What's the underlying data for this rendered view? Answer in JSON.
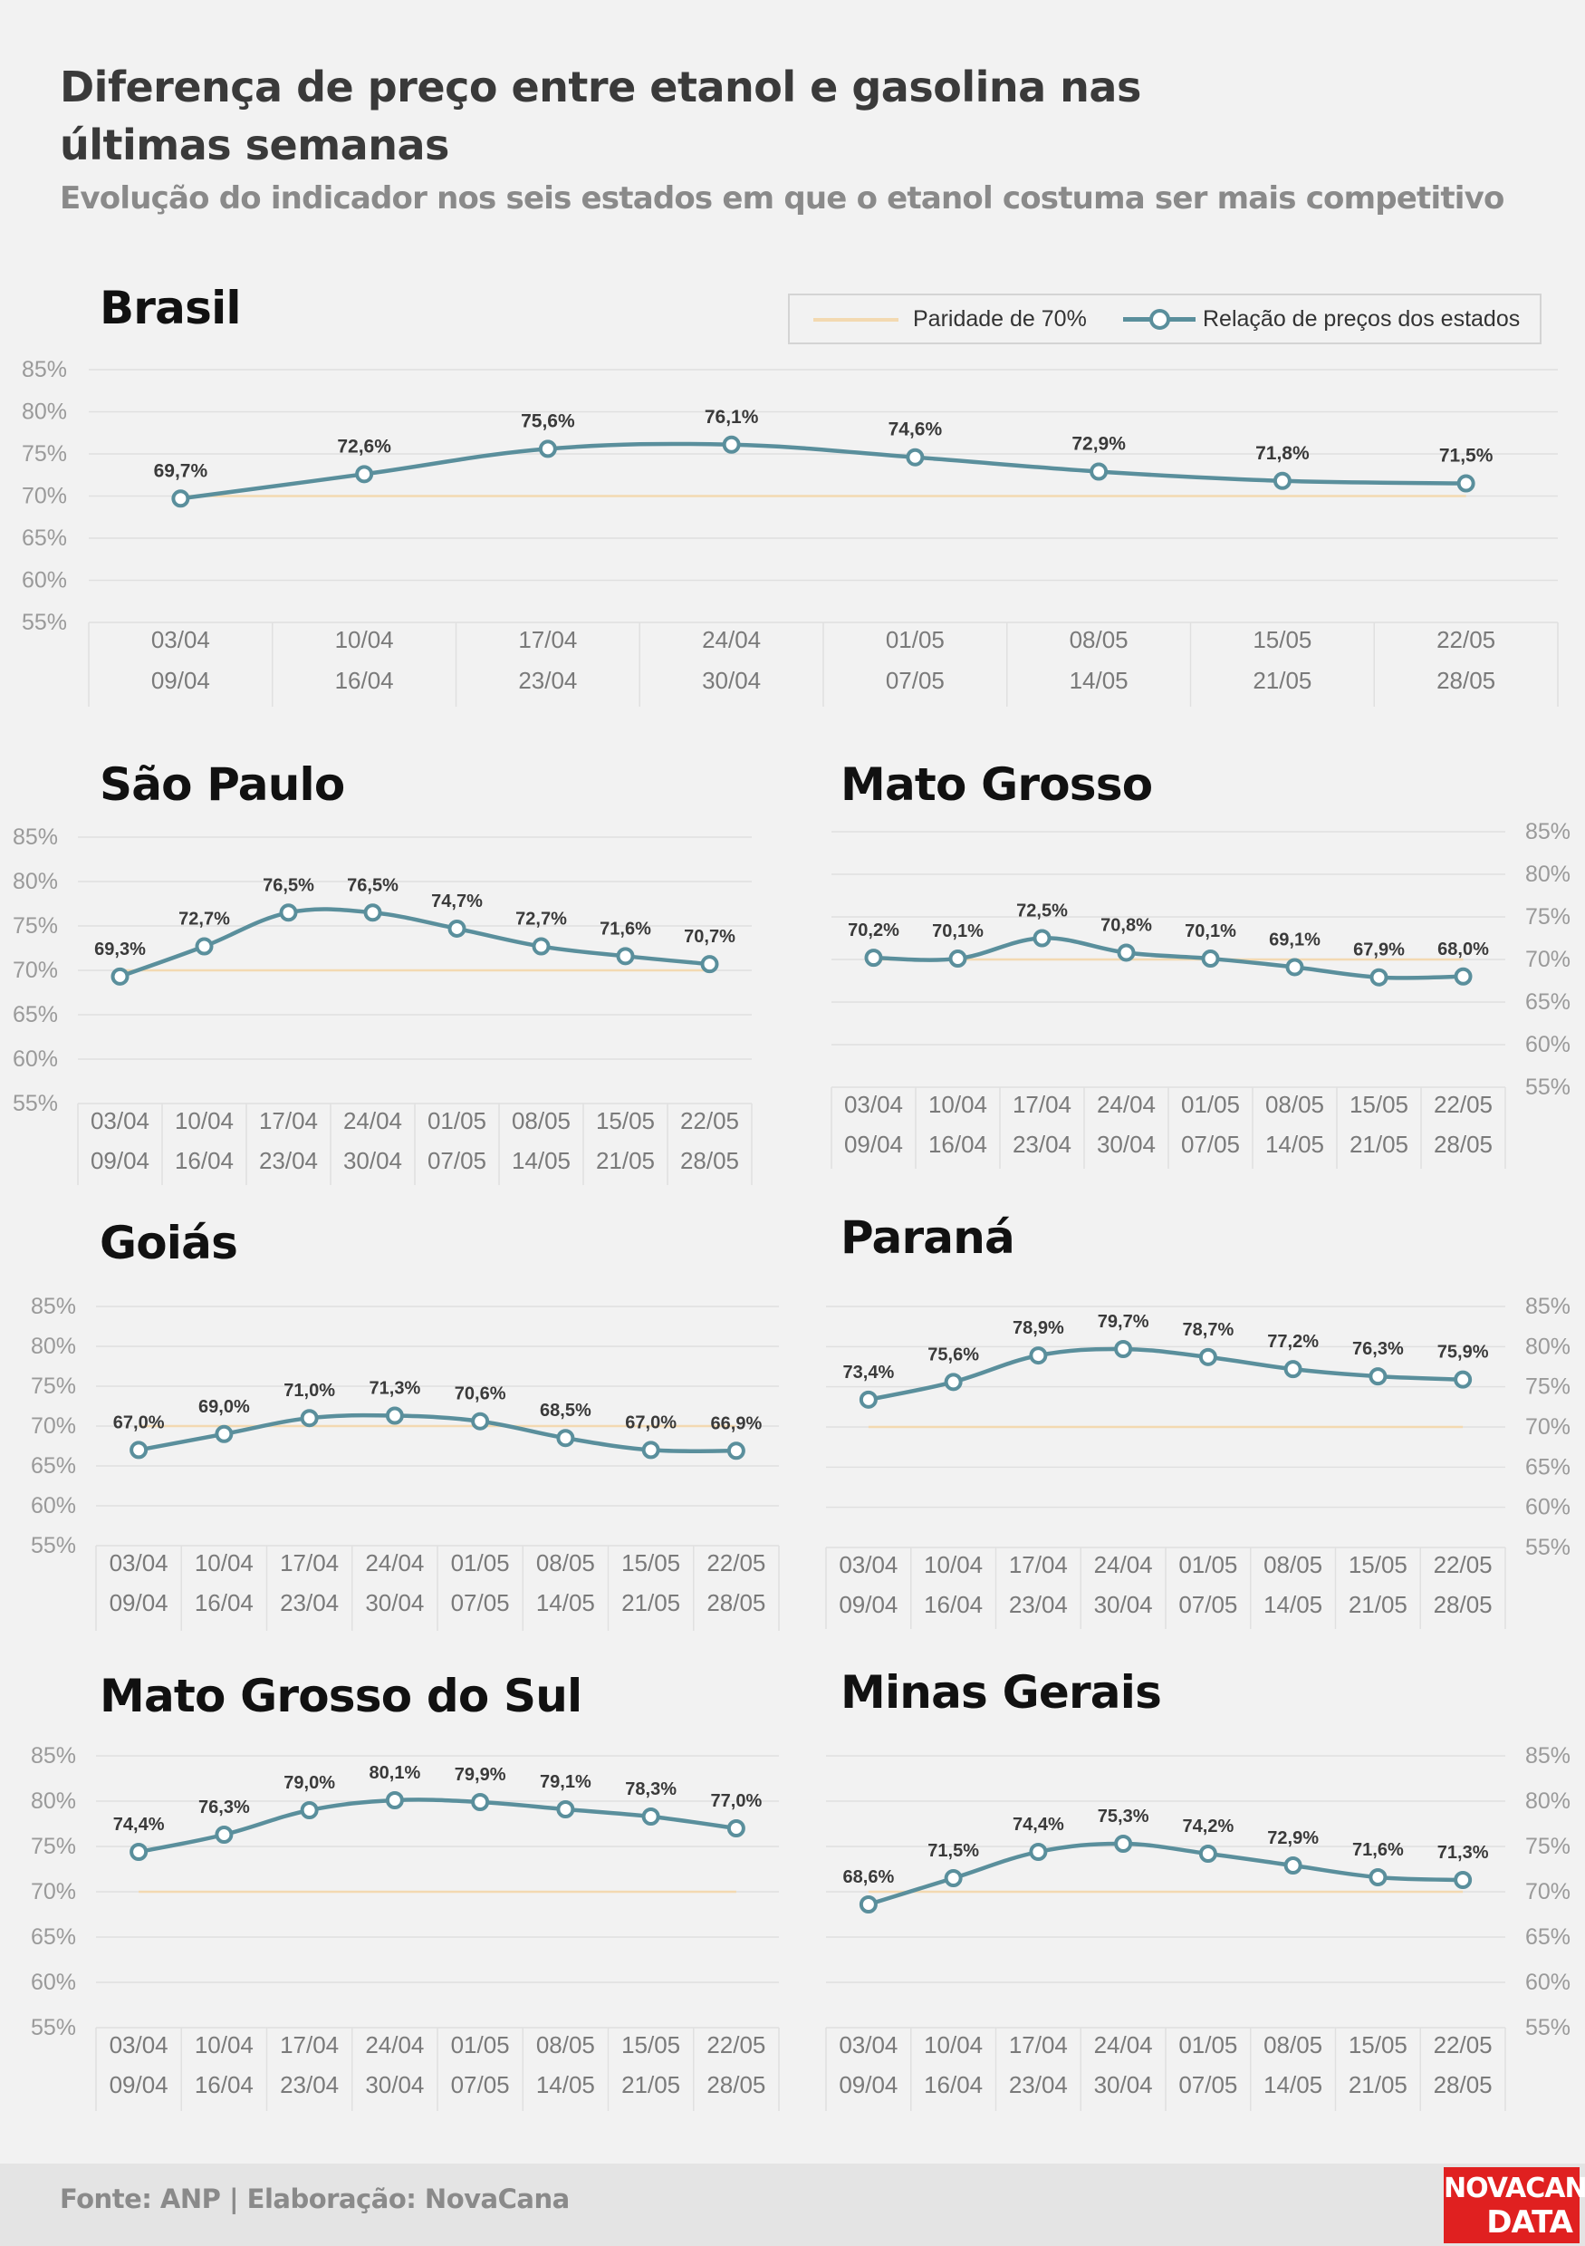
{
  "header": {
    "title_line1": "Diferença de preço entre etanol e gasolina nas",
    "title_line2": "últimas semanas",
    "subtitle": "Evolução do indicador nos seis estados em que o etanol costuma ser mais competitivo"
  },
  "legend": {
    "parity_label": "Paridade de 70%",
    "series_label": "Relação de preços dos estados"
  },
  "footer": {
    "source": "Fonte: ANP | Elaboração: NovaCana",
    "logo_line1": "NOVACANA",
    "logo_line2": "DATA"
  },
  "colors": {
    "series": "#5a8f9c",
    "parity": "#f3d9b1",
    "grid": "#e0e0e0",
    "axis_text": "#9a9a9a",
    "logo_bg": "#e02020"
  },
  "chart_data": [
    {
      "type": "line",
      "title": "Brasil",
      "categories": [
        [
          "03/04",
          "09/04"
        ],
        [
          "10/04",
          "16/04"
        ],
        [
          "17/04",
          "23/04"
        ],
        [
          "24/04",
          "30/04"
        ],
        [
          "01/05",
          "07/05"
        ],
        [
          "08/05",
          "14/05"
        ],
        [
          "15/05",
          "21/05"
        ],
        [
          "22/05",
          "28/05"
        ]
      ],
      "values": [
        69.7,
        72.6,
        75.6,
        76.1,
        74.6,
        72.9,
        71.8,
        71.5
      ],
      "labels": [
        "69,7%",
        "72,6%",
        "75,6%",
        "76,1%",
        "74,6%",
        "72,9%",
        "71,8%",
        "71,5%"
      ],
      "parity": 70,
      "ylim": [
        55,
        85
      ],
      "yticks": [
        "55%",
        "60%",
        "65%",
        "70%",
        "75%",
        "80%",
        "85%"
      ],
      "yaxis_side": "left",
      "grid": true
    },
    {
      "type": "line",
      "title": "São Paulo",
      "categories": [
        [
          "03/04",
          "09/04"
        ],
        [
          "10/04",
          "16/04"
        ],
        [
          "17/04",
          "23/04"
        ],
        [
          "24/04",
          "30/04"
        ],
        [
          "01/05",
          "07/05"
        ],
        [
          "08/05",
          "14/05"
        ],
        [
          "15/05",
          "21/05"
        ],
        [
          "22/05",
          "28/05"
        ]
      ],
      "values": [
        69.3,
        72.7,
        76.5,
        76.5,
        74.7,
        72.7,
        71.6,
        70.7
      ],
      "labels": [
        "69,3%",
        "72,7%",
        "76,5%",
        "76,5%",
        "74,7%",
        "72,7%",
        "71,6%",
        "70,7%"
      ],
      "parity": 70,
      "ylim": [
        55,
        85
      ],
      "yticks": [
        "55%",
        "60%",
        "65%",
        "70%",
        "75%",
        "80%",
        "85%"
      ],
      "yaxis_side": "left",
      "grid": true
    },
    {
      "type": "line",
      "title": "Mato Grosso",
      "categories": [
        [
          "03/04",
          "09/04"
        ],
        [
          "10/04",
          "16/04"
        ],
        [
          "17/04",
          "23/04"
        ],
        [
          "24/04",
          "30/04"
        ],
        [
          "01/05",
          "07/05"
        ],
        [
          "08/05",
          "14/05"
        ],
        [
          "15/05",
          "21/05"
        ],
        [
          "22/05",
          "28/05"
        ]
      ],
      "values": [
        70.2,
        70.1,
        72.5,
        70.8,
        70.1,
        69.1,
        67.9,
        68.0
      ],
      "labels": [
        "70,2%",
        "70,1%",
        "72,5%",
        "70,8%",
        "70,1%",
        "69,1%",
        "67,9%",
        "68,0%"
      ],
      "parity": 70,
      "ylim": [
        55,
        85
      ],
      "yticks": [
        "55%",
        "60%",
        "65%",
        "70%",
        "75%",
        "80%",
        "85%"
      ],
      "yaxis_side": "right",
      "grid": true
    },
    {
      "type": "line",
      "title": "Goiás",
      "categories": [
        [
          "03/04",
          "09/04"
        ],
        [
          "10/04",
          "16/04"
        ],
        [
          "17/04",
          "23/04"
        ],
        [
          "24/04",
          "30/04"
        ],
        [
          "01/05",
          "07/05"
        ],
        [
          "08/05",
          "14/05"
        ],
        [
          "15/05",
          "21/05"
        ],
        [
          "22/05",
          "28/05"
        ]
      ],
      "values": [
        67.0,
        69.0,
        71.0,
        71.3,
        70.6,
        68.5,
        67.0,
        66.9
      ],
      "labels": [
        "67,0%",
        "69,0%",
        "71,0%",
        "71,3%",
        "70,6%",
        "68,5%",
        "67,0%",
        "66,9%"
      ],
      "parity": 70,
      "ylim": [
        55,
        85
      ],
      "yticks": [
        "55%",
        "60%",
        "65%",
        "70%",
        "75%",
        "80%",
        "85%"
      ],
      "yaxis_side": "left",
      "grid": true
    },
    {
      "type": "line",
      "title": "Paraná",
      "categories": [
        [
          "03/04",
          "09/04"
        ],
        [
          "10/04",
          "16/04"
        ],
        [
          "17/04",
          "23/04"
        ],
        [
          "24/04",
          "30/04"
        ],
        [
          "01/05",
          "07/05"
        ],
        [
          "08/05",
          "14/05"
        ],
        [
          "15/05",
          "21/05"
        ],
        [
          "22/05",
          "28/05"
        ]
      ],
      "values": [
        73.4,
        75.6,
        78.9,
        79.7,
        78.7,
        77.2,
        76.3,
        75.9
      ],
      "labels": [
        "73,4%",
        "75,6%",
        "78,9%",
        "79,7%",
        "78,7%",
        "77,2%",
        "76,3%",
        "75,9%"
      ],
      "parity": 70,
      "ylim": [
        55,
        85
      ],
      "yticks": [
        "55%",
        "60%",
        "65%",
        "70%",
        "75%",
        "80%",
        "85%"
      ],
      "yaxis_side": "right",
      "grid": true
    },
    {
      "type": "line",
      "title": "Mato Grosso do Sul",
      "categories": [
        [
          "03/04",
          "09/04"
        ],
        [
          "10/04",
          "16/04"
        ],
        [
          "17/04",
          "23/04"
        ],
        [
          "24/04",
          "30/04"
        ],
        [
          "01/05",
          "07/05"
        ],
        [
          "08/05",
          "14/05"
        ],
        [
          "15/05",
          "21/05"
        ],
        [
          "22/05",
          "28/05"
        ]
      ],
      "values": [
        74.4,
        76.3,
        79.0,
        80.1,
        79.9,
        79.1,
        78.3,
        77.0
      ],
      "labels": [
        "74,4%",
        "76,3%",
        "79,0%",
        "80,1%",
        "79,9%",
        "79,1%",
        "78,3%",
        "77,0%"
      ],
      "parity": 70,
      "ylim": [
        55,
        85
      ],
      "yticks": [
        "55%",
        "60%",
        "65%",
        "70%",
        "75%",
        "80%",
        "85%"
      ],
      "yaxis_side": "left",
      "grid": true
    },
    {
      "type": "line",
      "title": "Minas Gerais",
      "categories": [
        [
          "03/04",
          "09/04"
        ],
        [
          "10/04",
          "16/04"
        ],
        [
          "17/04",
          "23/04"
        ],
        [
          "24/04",
          "30/04"
        ],
        [
          "01/05",
          "07/05"
        ],
        [
          "08/05",
          "14/05"
        ],
        [
          "15/05",
          "21/05"
        ],
        [
          "22/05",
          "28/05"
        ]
      ],
      "values": [
        68.6,
        71.5,
        74.4,
        75.3,
        74.2,
        72.9,
        71.6,
        71.3
      ],
      "labels": [
        "68,6%",
        "71,5%",
        "74,4%",
        "75,3%",
        "74,2%",
        "72,9%",
        "71,6%",
        "71,3%"
      ],
      "parity": 70,
      "ylim": [
        55,
        85
      ],
      "yticks": [
        "55%",
        "60%",
        "65%",
        "70%",
        "75%",
        "80%",
        "85%"
      ],
      "yaxis_side": "right",
      "grid": true
    }
  ]
}
